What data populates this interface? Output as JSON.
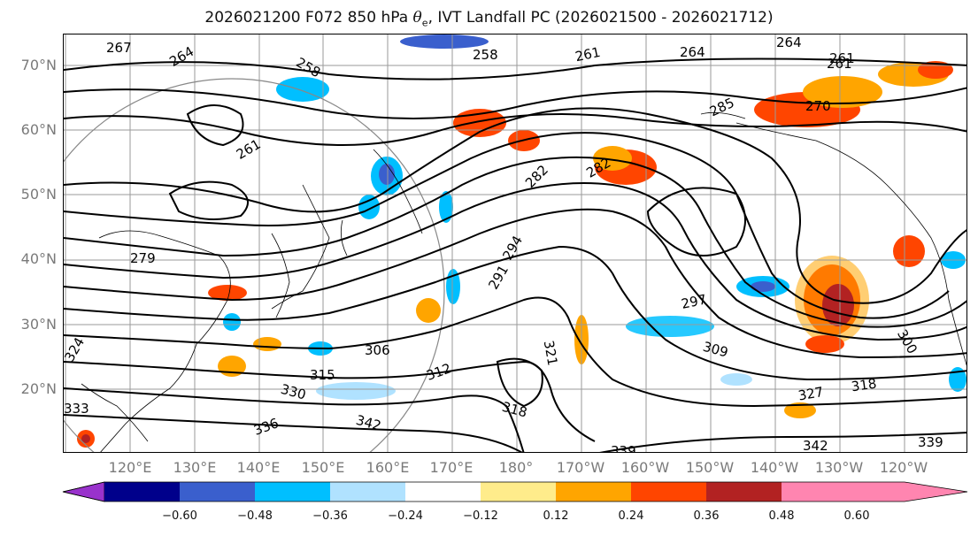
{
  "title_main": "2026021200 F072 850 hPa ",
  "title_symbol": "θ",
  "title_subscript": "e",
  "title_rest": ", IVT Landfall PC (2026021500 - 2026021712)",
  "lat_labels": [
    "70°N",
    "60°N",
    "50°N",
    "40°N",
    "30°N",
    "20°N"
  ],
  "lon_labels": [
    "120°E",
    "130°E",
    "140°E",
    "150°E",
    "160°E",
    "170°E",
    "180°",
    "170°W",
    "160°W",
    "150°W",
    "140°W",
    "130°W",
    "120°W"
  ],
  "contour_labels": [
    "267",
    "264",
    "258",
    "261",
    "264",
    "264",
    "261",
    "270",
    "258",
    "261",
    "282",
    "282",
    "285",
    "294",
    "291",
    "297",
    "300",
    "306",
    "309",
    "312",
    "315",
    "318",
    "321",
    "327",
    "330",
    "333",
    "336",
    "339",
    "339",
    "342",
    "342",
    "318",
    "324",
    "261",
    "279"
  ],
  "colorbar": {
    "ticks": [
      "−0.60",
      "−0.48",
      "−0.36",
      "−0.24",
      "−0.12",
      "0.12",
      "0.24",
      "0.36",
      "0.48",
      "0.60"
    ],
    "colors": [
      "#9932cc",
      "#00008b",
      "#3a5fcd",
      "#00bfff",
      "#b0e2ff",
      "#ffffff",
      "#ffec8b",
      "#ffa500",
      "#ff4500",
      "#b22222",
      "#ff85b0"
    ]
  }
}
